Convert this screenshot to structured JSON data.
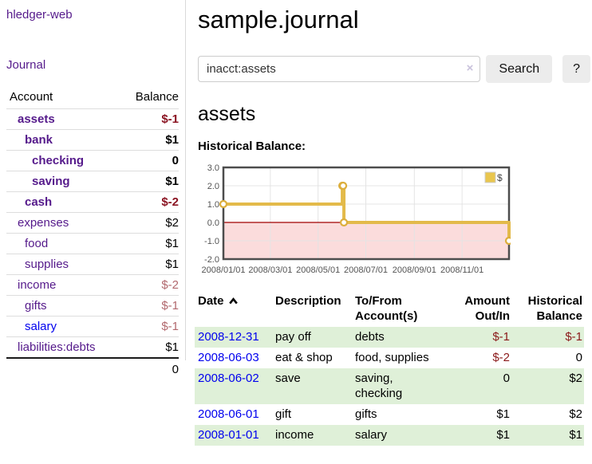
{
  "app": {
    "title": "hledger-web",
    "nav_journal": "Journal"
  },
  "sidebar": {
    "col_account": "Account",
    "col_balance": "Balance",
    "accounts": [
      {
        "name": "assets",
        "balance": "$-1"
      },
      {
        "name": "bank",
        "balance": "$1"
      },
      {
        "name": "checking",
        "balance": "0"
      },
      {
        "name": "saving",
        "balance": "$1"
      },
      {
        "name": "cash",
        "balance": "$-2"
      },
      {
        "name": "expenses",
        "balance": "$2"
      },
      {
        "name": "food",
        "balance": "$1"
      },
      {
        "name": "supplies",
        "balance": "$1"
      },
      {
        "name": "income",
        "balance": "$-2"
      },
      {
        "name": "gifts",
        "balance": "$-1"
      },
      {
        "name": "salary",
        "balance": "$-1"
      },
      {
        "name": "liabilities:debts",
        "balance": "$1"
      }
    ],
    "total": "0"
  },
  "header": {
    "title": "sample.journal"
  },
  "search": {
    "value": "inacct:assets",
    "clear_icon": "×",
    "button": "Search",
    "help_button": "?"
  },
  "account_page": {
    "title": "assets",
    "chart_label": "Historical Balance:"
  },
  "chart_data": {
    "type": "line",
    "step": true,
    "title": "Historical Balance",
    "series": [
      {
        "name": "$",
        "points": [
          [
            "2008-01-01",
            1
          ],
          [
            "2008-06-01",
            2
          ],
          [
            "2008-06-02",
            2
          ],
          [
            "2008-06-03",
            0
          ],
          [
            "2008-12-31",
            -1
          ]
        ]
      }
    ],
    "x_range": [
      "2008-01-01",
      "2008-12-31"
    ],
    "x_ticks": [
      "2008/01/01",
      "2008/03/01",
      "2008/05/01",
      "2008/07/01",
      "2008/09/01",
      "2008/11/01"
    ],
    "y_ticks": [
      3.0,
      2.0,
      1.0,
      0.0,
      -1.0,
      -2.0
    ],
    "ylim": [
      -2,
      3
    ],
    "grid": true,
    "legend": "$",
    "legend_position": "top-right"
  },
  "register": {
    "columns": [
      "Date",
      "Description",
      "To/From Account(s)",
      "Amount Out/In",
      "Historical Balance"
    ],
    "rows": [
      {
        "date": "2008-12-31",
        "description": "pay off",
        "accounts": "debts",
        "amount": "$-1",
        "balance": "$-1"
      },
      {
        "date": "2008-06-03",
        "description": "eat & shop",
        "accounts": "food, supplies",
        "amount": "$-2",
        "balance": "0"
      },
      {
        "date": "2008-06-02",
        "description": "save",
        "accounts": "saving, checking",
        "amount": "0",
        "balance": "$2"
      },
      {
        "date": "2008-06-01",
        "description": "gift",
        "accounts": "gifts",
        "amount": "$1",
        "balance": "$2"
      },
      {
        "date": "2008-01-01",
        "description": "income",
        "accounts": "salary",
        "amount": "$1",
        "balance": "$1"
      }
    ]
  },
  "colors": {
    "link_visited": "#551a8b",
    "link_new": "#0000ee",
    "negative_strong": "#8b1523",
    "negative_soft": "#b2696e",
    "negative_table": "#8b1a1a",
    "row_green": "#dff0d8",
    "chart_line": "#e3ba4a",
    "chart_marker": "#dcae3c",
    "chart_zero_line": "#a00000",
    "chart_negative_region": "#fbdcdc",
    "chart_frame": "#4d4d4d"
  }
}
